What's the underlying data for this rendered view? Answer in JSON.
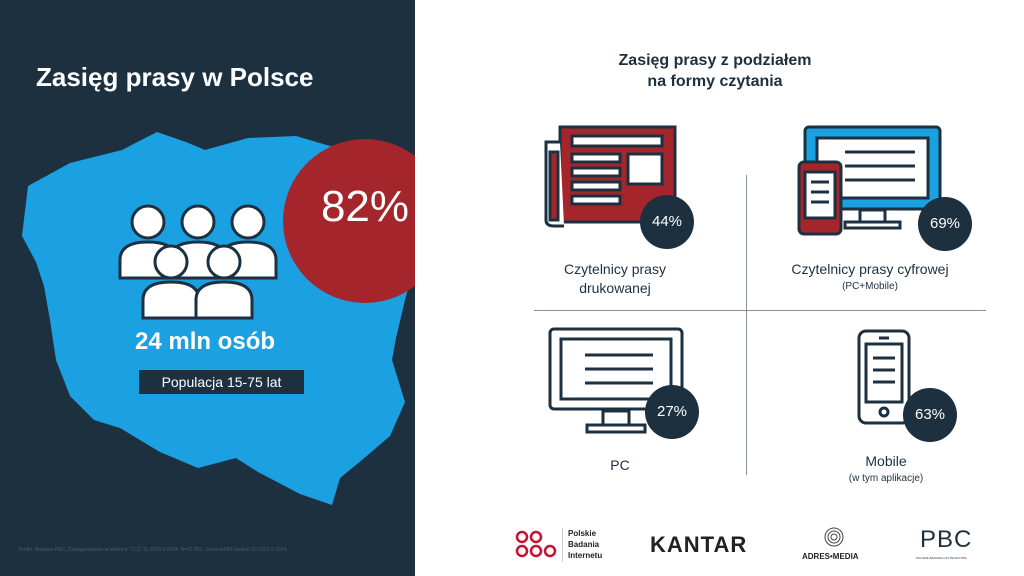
{
  "left": {
    "title": "Zasięg prasy w Polsce",
    "reach_percent": "82%",
    "population": "24 mln osób",
    "age_group": "Populacja 15-75 lat",
    "source": "Źródło: Badanie PBC „Zaangażowanie w reklamę” CCC 10.2023-9.2024, N=21 851. Gemius/PBI średnia 10.2023-9.2024."
  },
  "right": {
    "title_line1": "Zasięg prasy z podziałem",
    "title_line2": "na formy czytania",
    "segments": [
      {
        "label_line1": "Czytelnicy prasy",
        "label_line2": "drukowanej",
        "sub": "",
        "percent": "44%"
      },
      {
        "label_line1": "Czytelnicy prasy cyfrowej",
        "label_line2": "",
        "sub": "(PC+Mobile)",
        "percent": "69%"
      },
      {
        "label_line1": "PC",
        "label_line2": "",
        "sub": "",
        "percent": "27%"
      },
      {
        "label_line1": "Mobile",
        "label_line2": "",
        "sub": "(w tym aplikacje)",
        "percent": "63%"
      }
    ]
  },
  "logos": {
    "pbi_line1": "Polskie",
    "pbi_line2": "Badania",
    "pbi_line3": "Internetu",
    "kantar": "KANTAR",
    "adres_media": "ADRES•MEDIA",
    "pbc": "PBC",
    "pbc_sub": "POLSKIE BADANIA CZYTELNICTWA"
  },
  "colors": {
    "navy": "#1d3040",
    "map_blue": "#1ba1e2",
    "red": "#a4262c",
    "grey": "#8a8f94"
  }
}
